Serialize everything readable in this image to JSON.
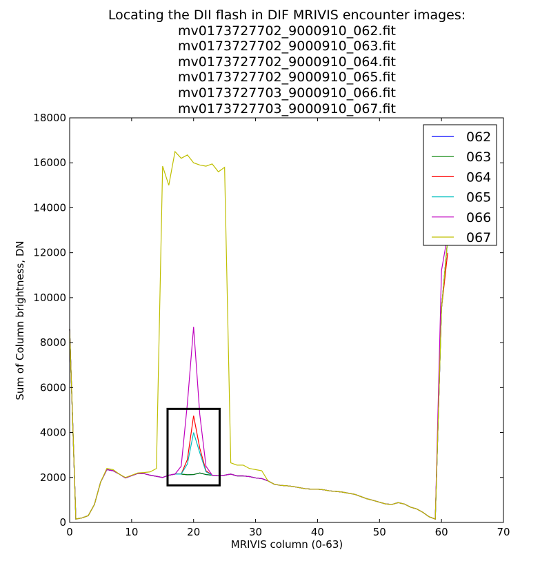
{
  "chart_data": {
    "type": "line",
    "title": [
      "Locating the DII flash in DIF MRIVIS encounter images:",
      "mv0173727702_9000910_062.fit",
      "mv0173727702_9000910_063.fit",
      "mv0173727702_9000910_064.fit",
      "mv0173727702_9000910_065.fit",
      "mv0173727703_9000910_066.fit",
      "mv0173727703_9000910_067.fit"
    ],
    "xlabel": "MRIVIS column (0-63)",
    "ylabel": "Sum of Column brightness, DN",
    "xlim": [
      0,
      70
    ],
    "ylim": [
      0,
      18000
    ],
    "xticks": [
      0,
      10,
      20,
      30,
      40,
      50,
      60,
      70
    ],
    "yticks": [
      0,
      2000,
      4000,
      6000,
      8000,
      10000,
      12000,
      14000,
      16000,
      18000
    ],
    "grid": false,
    "legend_position": "top-right",
    "annotation_box": {
      "x": [
        15.8,
        24.2
      ],
      "y": [
        1650,
        5050
      ],
      "color": "#000000"
    },
    "x": [
      0,
      1,
      2,
      3,
      4,
      5,
      6,
      7,
      8,
      9,
      10,
      11,
      12,
      13,
      14,
      15,
      16,
      17,
      18,
      19,
      20,
      21,
      22,
      23,
      24,
      25,
      26,
      27,
      28,
      29,
      30,
      31,
      32,
      33,
      34,
      35,
      36,
      37,
      38,
      39,
      40,
      41,
      42,
      43,
      44,
      45,
      46,
      47,
      48,
      49,
      50,
      51,
      52,
      53,
      54,
      55,
      56,
      57,
      58,
      59,
      60,
      61
    ],
    "series": [
      {
        "name": "062",
        "color": "#0000ff",
        "values": [
          8600,
          150,
          200,
          300,
          800,
          1800,
          2350,
          2300,
          2150,
          1980,
          2080,
          2180,
          2170,
          2100,
          2050,
          2000,
          2100,
          2150,
          2150,
          2120,
          2130,
          2200,
          2130,
          2100,
          2080,
          2100,
          2150,
          2070,
          2070,
          2040,
          1980,
          1950,
          1850,
          1700,
          1650,
          1630,
          1600,
          1550,
          1500,
          1480,
          1480,
          1450,
          1400,
          1380,
          1350,
          1300,
          1250,
          1150,
          1050,
          980,
          900,
          820,
          800,
          880,
          820,
          680,
          600,
          450,
          250,
          150,
          9500,
          12600
        ]
      },
      {
        "name": "063",
        "color": "#008000",
        "values": [
          8600,
          150,
          200,
          300,
          800,
          1800,
          2350,
          2300,
          2150,
          1980,
          2080,
          2180,
          2170,
          2100,
          2050,
          2000,
          2100,
          2150,
          2150,
          2120,
          2130,
          2200,
          2130,
          2100,
          2080,
          2100,
          2150,
          2070,
          2070,
          2040,
          1980,
          1950,
          1850,
          1700,
          1650,
          1630,
          1600,
          1550,
          1500,
          1480,
          1480,
          1450,
          1400,
          1380,
          1350,
          1300,
          1250,
          1150,
          1050,
          980,
          900,
          820,
          800,
          880,
          820,
          680,
          600,
          450,
          250,
          150,
          9500,
          12600
        ]
      },
      {
        "name": "064",
        "color": "#ff0000",
        "values": [
          8600,
          150,
          200,
          300,
          800,
          1800,
          2350,
          2300,
          2150,
          1980,
          2080,
          2180,
          2170,
          2100,
          2050,
          2000,
          2100,
          2150,
          2150,
          2800,
          4750,
          3300,
          2300,
          2100,
          2080,
          2100,
          2150,
          2070,
          2070,
          2040,
          1980,
          1950,
          1850,
          1700,
          1650,
          1630,
          1600,
          1550,
          1500,
          1480,
          1480,
          1450,
          1400,
          1380,
          1350,
          1300,
          1250,
          1150,
          1050,
          980,
          900,
          820,
          800,
          880,
          820,
          680,
          600,
          450,
          250,
          150,
          9500,
          12000
        ]
      },
      {
        "name": "065",
        "color": "#00bfbf",
        "values": [
          8600,
          150,
          200,
          300,
          800,
          1800,
          2350,
          2300,
          2150,
          1980,
          2080,
          2180,
          2170,
          2100,
          2050,
          2000,
          2100,
          2150,
          2150,
          2600,
          4000,
          3100,
          2250,
          2100,
          2080,
          2100,
          2150,
          2070,
          2070,
          2040,
          1980,
          1950,
          1850,
          1700,
          1650,
          1630,
          1600,
          1550,
          1500,
          1480,
          1480,
          1450,
          1400,
          1380,
          1350,
          1300,
          1250,
          1150,
          1050,
          980,
          900,
          820,
          800,
          880,
          820,
          680,
          600,
          450,
          250,
          150,
          9500,
          12600
        ]
      },
      {
        "name": "066",
        "color": "#bf00bf",
        "values": [
          8600,
          150,
          200,
          300,
          800,
          1800,
          2350,
          2300,
          2150,
          1980,
          2080,
          2180,
          2170,
          2100,
          2050,
          2000,
          2100,
          2150,
          2500,
          5300,
          8700,
          4800,
          2500,
          2100,
          2080,
          2100,
          2150,
          2070,
          2070,
          2040,
          1980,
          1950,
          1850,
          1700,
          1650,
          1630,
          1600,
          1550,
          1500,
          1480,
          1480,
          1450,
          1400,
          1380,
          1350,
          1300,
          1250,
          1150,
          1050,
          980,
          900,
          820,
          800,
          880,
          820,
          680,
          600,
          450,
          250,
          150,
          11200,
          12800
        ]
      },
      {
        "name": "067",
        "color": "#bfbf00",
        "values": [
          8600,
          150,
          200,
          300,
          800,
          1800,
          2400,
          2350,
          2150,
          2000,
          2100,
          2200,
          2220,
          2250,
          2400,
          15850,
          15000,
          16500,
          16200,
          16350,
          16000,
          15900,
          15850,
          15950,
          15600,
          15800,
          2650,
          2550,
          2550,
          2400,
          2350,
          2300,
          1850,
          1700,
          1650,
          1630,
          1600,
          1550,
          1500,
          1480,
          1480,
          1450,
          1400,
          1380,
          1350,
          1300,
          1250,
          1150,
          1050,
          980,
          900,
          820,
          800,
          880,
          820,
          680,
          600,
          450,
          250,
          150,
          9500,
          12600
        ]
      }
    ]
  }
}
